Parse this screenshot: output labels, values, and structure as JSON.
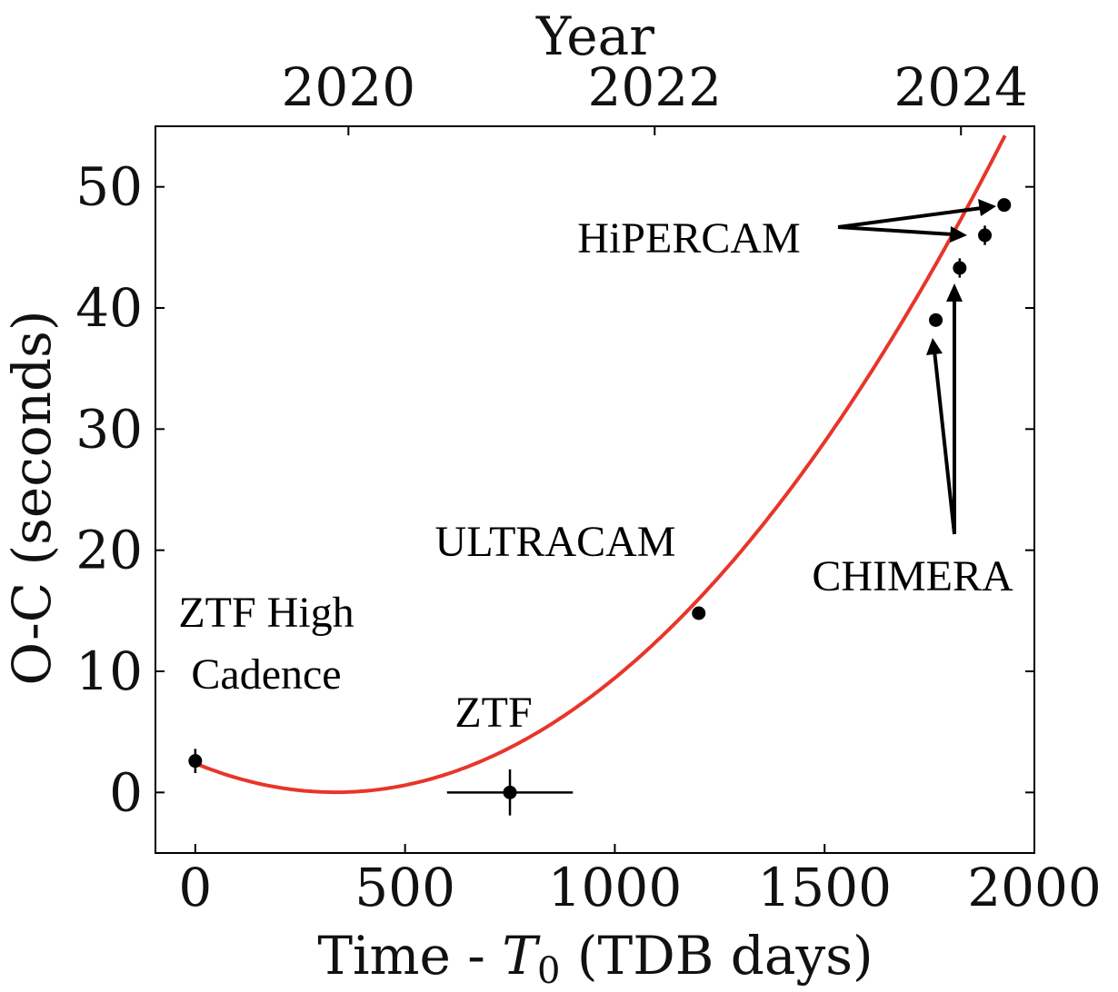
{
  "chart_data": {
    "type": "scatter",
    "xlabel": "Time - ",
    "xlabel_symbol": "T",
    "xlabel_sub": "0",
    "xlabel_suffix": " (TDB days)",
    "ylabel": "O-C (seconds)",
    "top_axis_title": "Year",
    "xlim": [
      -95,
      2000
    ],
    "ylim": [
      -5,
      55
    ],
    "xticks": [
      0,
      500,
      1000,
      1500,
      2000
    ],
    "yticks": [
      0,
      10,
      20,
      30,
      40,
      50
    ],
    "top_ticks": [
      {
        "label": "2020",
        "x": 365
      },
      {
        "label": "2022",
        "x": 1095
      },
      {
        "label": "2024",
        "x": 1825
      }
    ],
    "points": [
      {
        "name": "ZTF High Cadence",
        "x": 0,
        "y": 2.6,
        "xerr": 0,
        "yerr": 1.0
      },
      {
        "name": "ZTF",
        "x": 750,
        "y": 0,
        "xerr": 150,
        "yerr": 1.9
      },
      {
        "name": "ULTRACAM",
        "x": 1200,
        "y": 14.8,
        "xerr": 0,
        "yerr": 0.4
      },
      {
        "name": "CHIMERA",
        "x": 1765,
        "y": 39.0,
        "xerr": 0,
        "yerr": 0.5
      },
      {
        "name": "CHIMERA",
        "x": 1822,
        "y": 43.3,
        "xerr": 0,
        "yerr": 0.8
      },
      {
        "name": "HiPERCAM",
        "x": 1882,
        "y": 46.0,
        "xerr": 0,
        "yerr": 0.8
      },
      {
        "name": "HiPERCAM",
        "x": 1928,
        "y": 48.5,
        "xerr": 0,
        "yerr": 0.5
      }
    ],
    "fit": {
      "type": "quadratic",
      "c0": 2.4,
      "c1": -0.01425,
      "c2": 2.13e-05,
      "x_range": [
        0,
        1930
      ],
      "color": "#e8352a"
    },
    "annotations": {
      "ztf_high_line1": "ZTF High",
      "ztf_high_line2": "Cadence",
      "ztf": "ZTF",
      "ultracam": "ULTRACAM",
      "chimera": "CHIMERA",
      "hipercam": "HiPERCAM"
    }
  }
}
